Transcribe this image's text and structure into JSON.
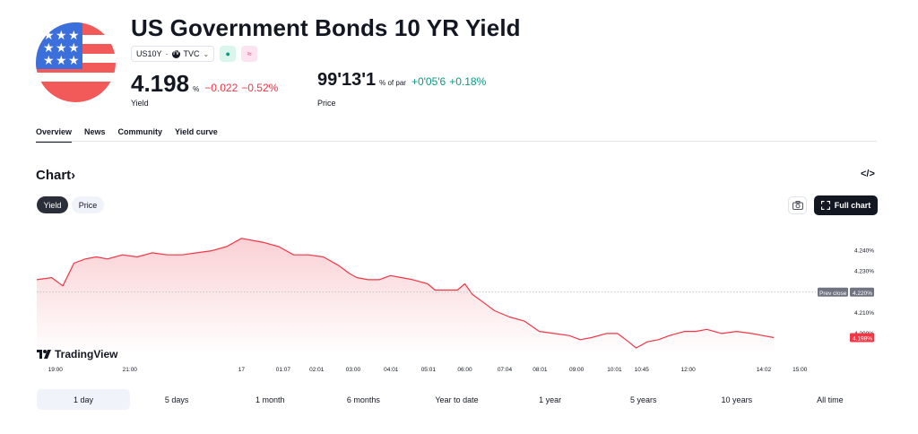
{
  "header": {
    "title": "US Government Bonds 10 YR Yield",
    "symbol": "US10Y",
    "exchange": "TVC",
    "badge_green": "●",
    "badge_pink": "≈"
  },
  "quote": {
    "yield_value": "4.198",
    "yield_unit": "%",
    "yield_change": "−0.022",
    "yield_change_pct": "−0.52%",
    "yield_label": "Yield",
    "price_value": "99'13'1",
    "price_unit": "% of par",
    "price_change": "+0'05'6",
    "price_change_pct": "+0.18%",
    "price_label": "Price"
  },
  "tabs": [
    "Overview",
    "News",
    "Community",
    "Yield curve"
  ],
  "chart_section": {
    "title": "Chart",
    "title_chevron": "›",
    "embed_icon": "</>",
    "toggle_yield": "Yield",
    "toggle_price": "Price",
    "full_chart_label": "Full chart",
    "logo_text": "TradingView"
  },
  "colors": {
    "line": "#f23645",
    "fill_top": "#f9c8cc",
    "positive": "#089981",
    "negative": "#f23645",
    "prev_close_bg": "#707480"
  },
  "chart_data": {
    "type": "area",
    "y_unit": "%",
    "y_ticks": [
      "4.240%",
      "4.230%",
      "4.210%",
      "4.200%"
    ],
    "prev_close_label": "Prev close",
    "prev_close_value": "4.220%",
    "last_value_label": "4.198%",
    "prev_close": 4.22,
    "last": 4.198,
    "ylim": [
      4.19,
      4.255
    ],
    "x_tick_labels": [
      "19:00",
      "21:00",
      "17",
      "01:07",
      "02:01",
      "03:00",
      "04:01",
      "05:01",
      "06:00",
      "07:04",
      "08:01",
      "09:00",
      "10:01",
      "10:45",
      "12:00",
      "14:02",
      "15:00"
    ],
    "x_tick_hours": [
      19,
      21,
      24,
      25.12,
      26.02,
      27,
      28.02,
      29.02,
      30,
      31.07,
      32.02,
      33,
      34.02,
      34.75,
      36,
      38.03,
      39
    ],
    "x_range_hours": [
      18.5,
      39.5
    ],
    "series": [
      {
        "hours": [
          18.5,
          18.9,
          19.2,
          19.5,
          19.8,
          20.1,
          20.4,
          20.8,
          21.2,
          21.6,
          22.0,
          22.4,
          22.8,
          23.2,
          23.6,
          24.0,
          24.3,
          24.6,
          25.0,
          25.4,
          25.8,
          26.2,
          26.6,
          26.9,
          27.1,
          27.4,
          27.7,
          28.0,
          28.3,
          28.6,
          29.0,
          29.2,
          29.5,
          29.8,
          30.0,
          30.2,
          30.5,
          30.8,
          31.2,
          31.6,
          32.0,
          32.4,
          32.8,
          33.1,
          33.4,
          33.8,
          34.1,
          34.4,
          34.6,
          34.9,
          35.2,
          35.5,
          35.9,
          36.2,
          36.5,
          36.9,
          37.3,
          37.7,
          38.0,
          38.3
        ],
        "values": [
          4.226,
          4.227,
          4.223,
          4.234,
          4.236,
          4.237,
          4.236,
          4.238,
          4.237,
          4.239,
          4.238,
          4.238,
          4.239,
          4.24,
          4.242,
          4.246,
          4.245,
          4.244,
          4.242,
          4.238,
          4.238,
          4.237,
          4.233,
          4.229,
          4.227,
          4.226,
          4.226,
          4.228,
          4.227,
          4.226,
          4.224,
          4.221,
          4.221,
          4.221,
          4.224,
          4.219,
          4.215,
          4.211,
          4.208,
          4.206,
          4.201,
          4.2,
          4.199,
          4.197,
          4.198,
          4.2,
          4.2,
          4.196,
          4.193,
          4.196,
          4.197,
          4.199,
          4.201,
          4.201,
          4.202,
          4.2,
          4.201,
          4.2,
          4.199,
          4.198
        ]
      }
    ],
    "grid": false
  },
  "ranges": [
    "1 day",
    "5 days",
    "1 month",
    "6 months",
    "Year to date",
    "1 year",
    "5 years",
    "10 years",
    "All time"
  ]
}
